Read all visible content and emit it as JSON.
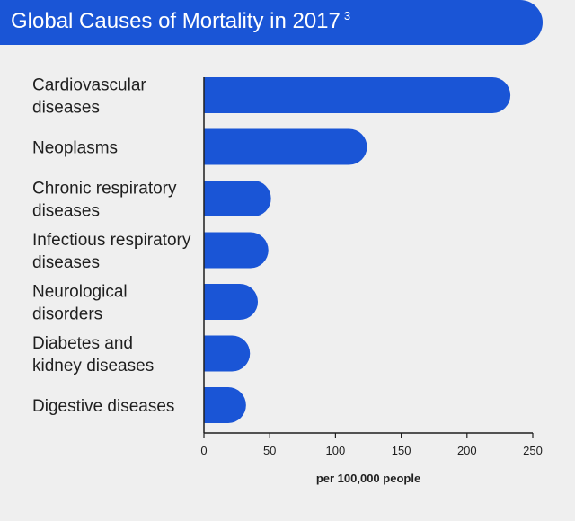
{
  "header": {
    "title": "Global Causes of Mortality in 2017",
    "footnote": "3"
  },
  "colors": {
    "accent": "#1a55d6",
    "background": "#efefef",
    "text": "#1f1f1f"
  },
  "chart_data": {
    "type": "bar",
    "orientation": "horizontal",
    "title": "Global Causes of Mortality in 2017",
    "categories": [
      [
        "Cardiovascular",
        "diseases"
      ],
      [
        "Neoplasms"
      ],
      [
        "Chronic respiratory",
        "diseases"
      ],
      [
        "Infectious respiratory",
        "diseases"
      ],
      [
        "Neurological",
        "disorders"
      ],
      [
        "Diabetes and",
        "kidney diseases"
      ],
      [
        "Digestive diseases"
      ]
    ],
    "values": [
      233,
      124,
      51,
      49,
      41,
      35,
      32
    ],
    "xlabel": "per 100,000 people",
    "ylabel": "",
    "xlim": [
      0,
      250
    ],
    "xticks": [
      0,
      50,
      100,
      150,
      200,
      250
    ],
    "grid": false,
    "legend": "none"
  }
}
